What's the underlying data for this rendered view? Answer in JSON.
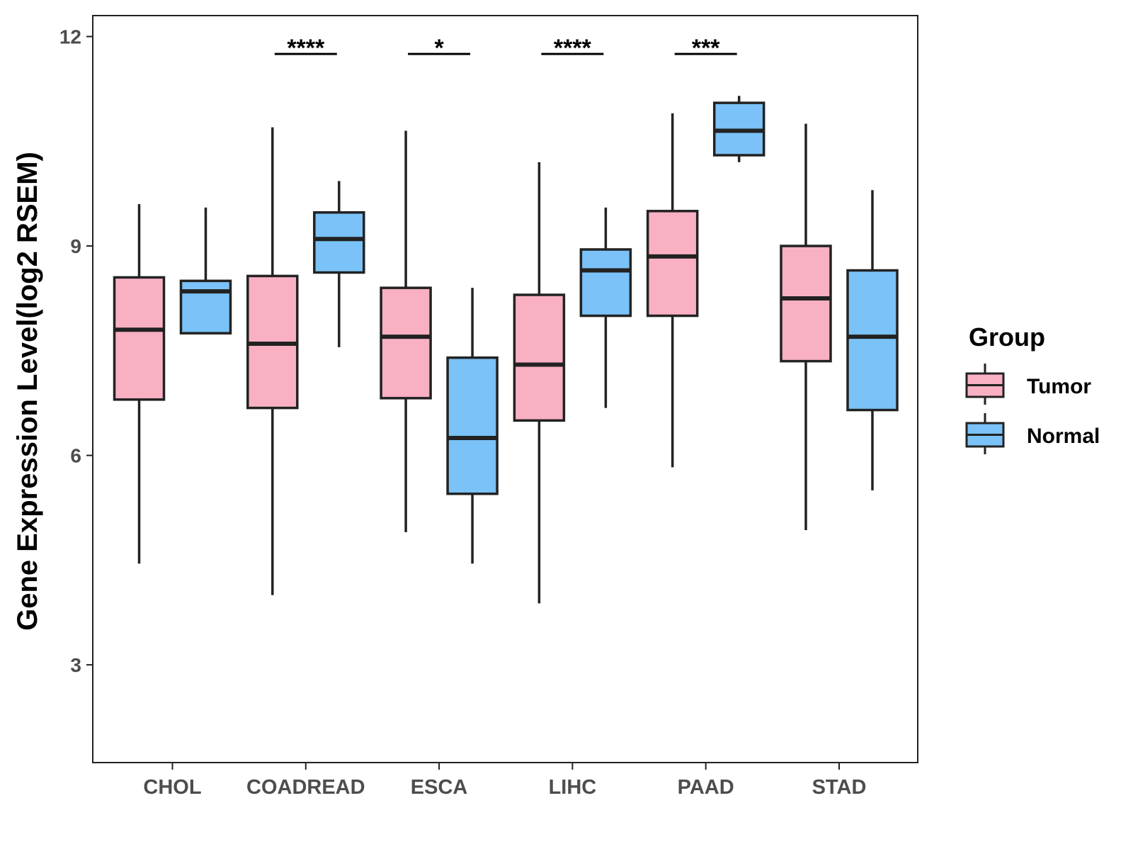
{
  "chart_data": {
    "type": "boxplot",
    "title": "",
    "xlabel": "",
    "ylabel": "Gene Expression Level(log2 RSEM)",
    "ylim": [
      1.6,
      12.3
    ],
    "yticks": [
      3,
      6,
      9,
      12
    ],
    "grid": false,
    "legend": {
      "title": "Group",
      "position": "right",
      "items": [
        {
          "name": "Tumor",
          "color": "#F9B0C3"
        },
        {
          "name": "Normal",
          "color": "#7AC2F7"
        }
      ]
    },
    "categories": [
      "CHOL",
      "COADREAD",
      "ESCA",
      "LIHC",
      "PAAD",
      "STAD"
    ],
    "series": [
      {
        "name": "Tumor",
        "color": "#F9B0C3",
        "boxes": [
          {
            "min": 4.45,
            "q1": 6.8,
            "median": 7.8,
            "q3": 8.55,
            "max": 9.6
          },
          {
            "min": 4.0,
            "q1": 6.68,
            "median": 7.6,
            "q3": 8.57,
            "max": 10.7
          },
          {
            "min": 4.9,
            "q1": 6.82,
            "median": 7.7,
            "q3": 8.4,
            "max": 10.65
          },
          {
            "min": 3.88,
            "q1": 6.5,
            "median": 7.3,
            "q3": 8.3,
            "max": 10.2
          },
          {
            "min": 5.83,
            "q1": 8.0,
            "median": 8.85,
            "q3": 9.5,
            "max": 10.9
          },
          {
            "min": 4.93,
            "q1": 7.35,
            "median": 8.25,
            "q3": 9.0,
            "max": 10.75
          }
        ]
      },
      {
        "name": "Normal",
        "color": "#7AC2F7",
        "boxes": [
          {
            "min": 7.75,
            "q1": 7.75,
            "median": 8.35,
            "q3": 8.5,
            "max": 9.55
          },
          {
            "min": 7.55,
            "q1": 8.62,
            "median": 9.1,
            "q3": 9.48,
            "max": 9.93
          },
          {
            "min": 4.45,
            "q1": 5.45,
            "median": 6.25,
            "q3": 7.4,
            "max": 8.4
          },
          {
            "min": 6.68,
            "q1": 8.0,
            "median": 8.65,
            "q3": 8.95,
            "max": 9.55
          },
          {
            "min": 10.2,
            "q1": 10.3,
            "median": 10.65,
            "q3": 11.05,
            "max": 11.15
          },
          {
            "min": 5.5,
            "q1": 6.65,
            "median": 7.7,
            "q3": 8.65,
            "max": 9.8
          }
        ]
      }
    ],
    "annotations": [
      {
        "category": "COADREAD",
        "label": "****",
        "y": 11.75
      },
      {
        "category": "ESCA",
        "label": "*",
        "y": 11.75
      },
      {
        "category": "LIHC",
        "label": "****",
        "y": 11.75
      },
      {
        "category": "PAAD",
        "label": "***",
        "y": 11.75
      }
    ]
  }
}
